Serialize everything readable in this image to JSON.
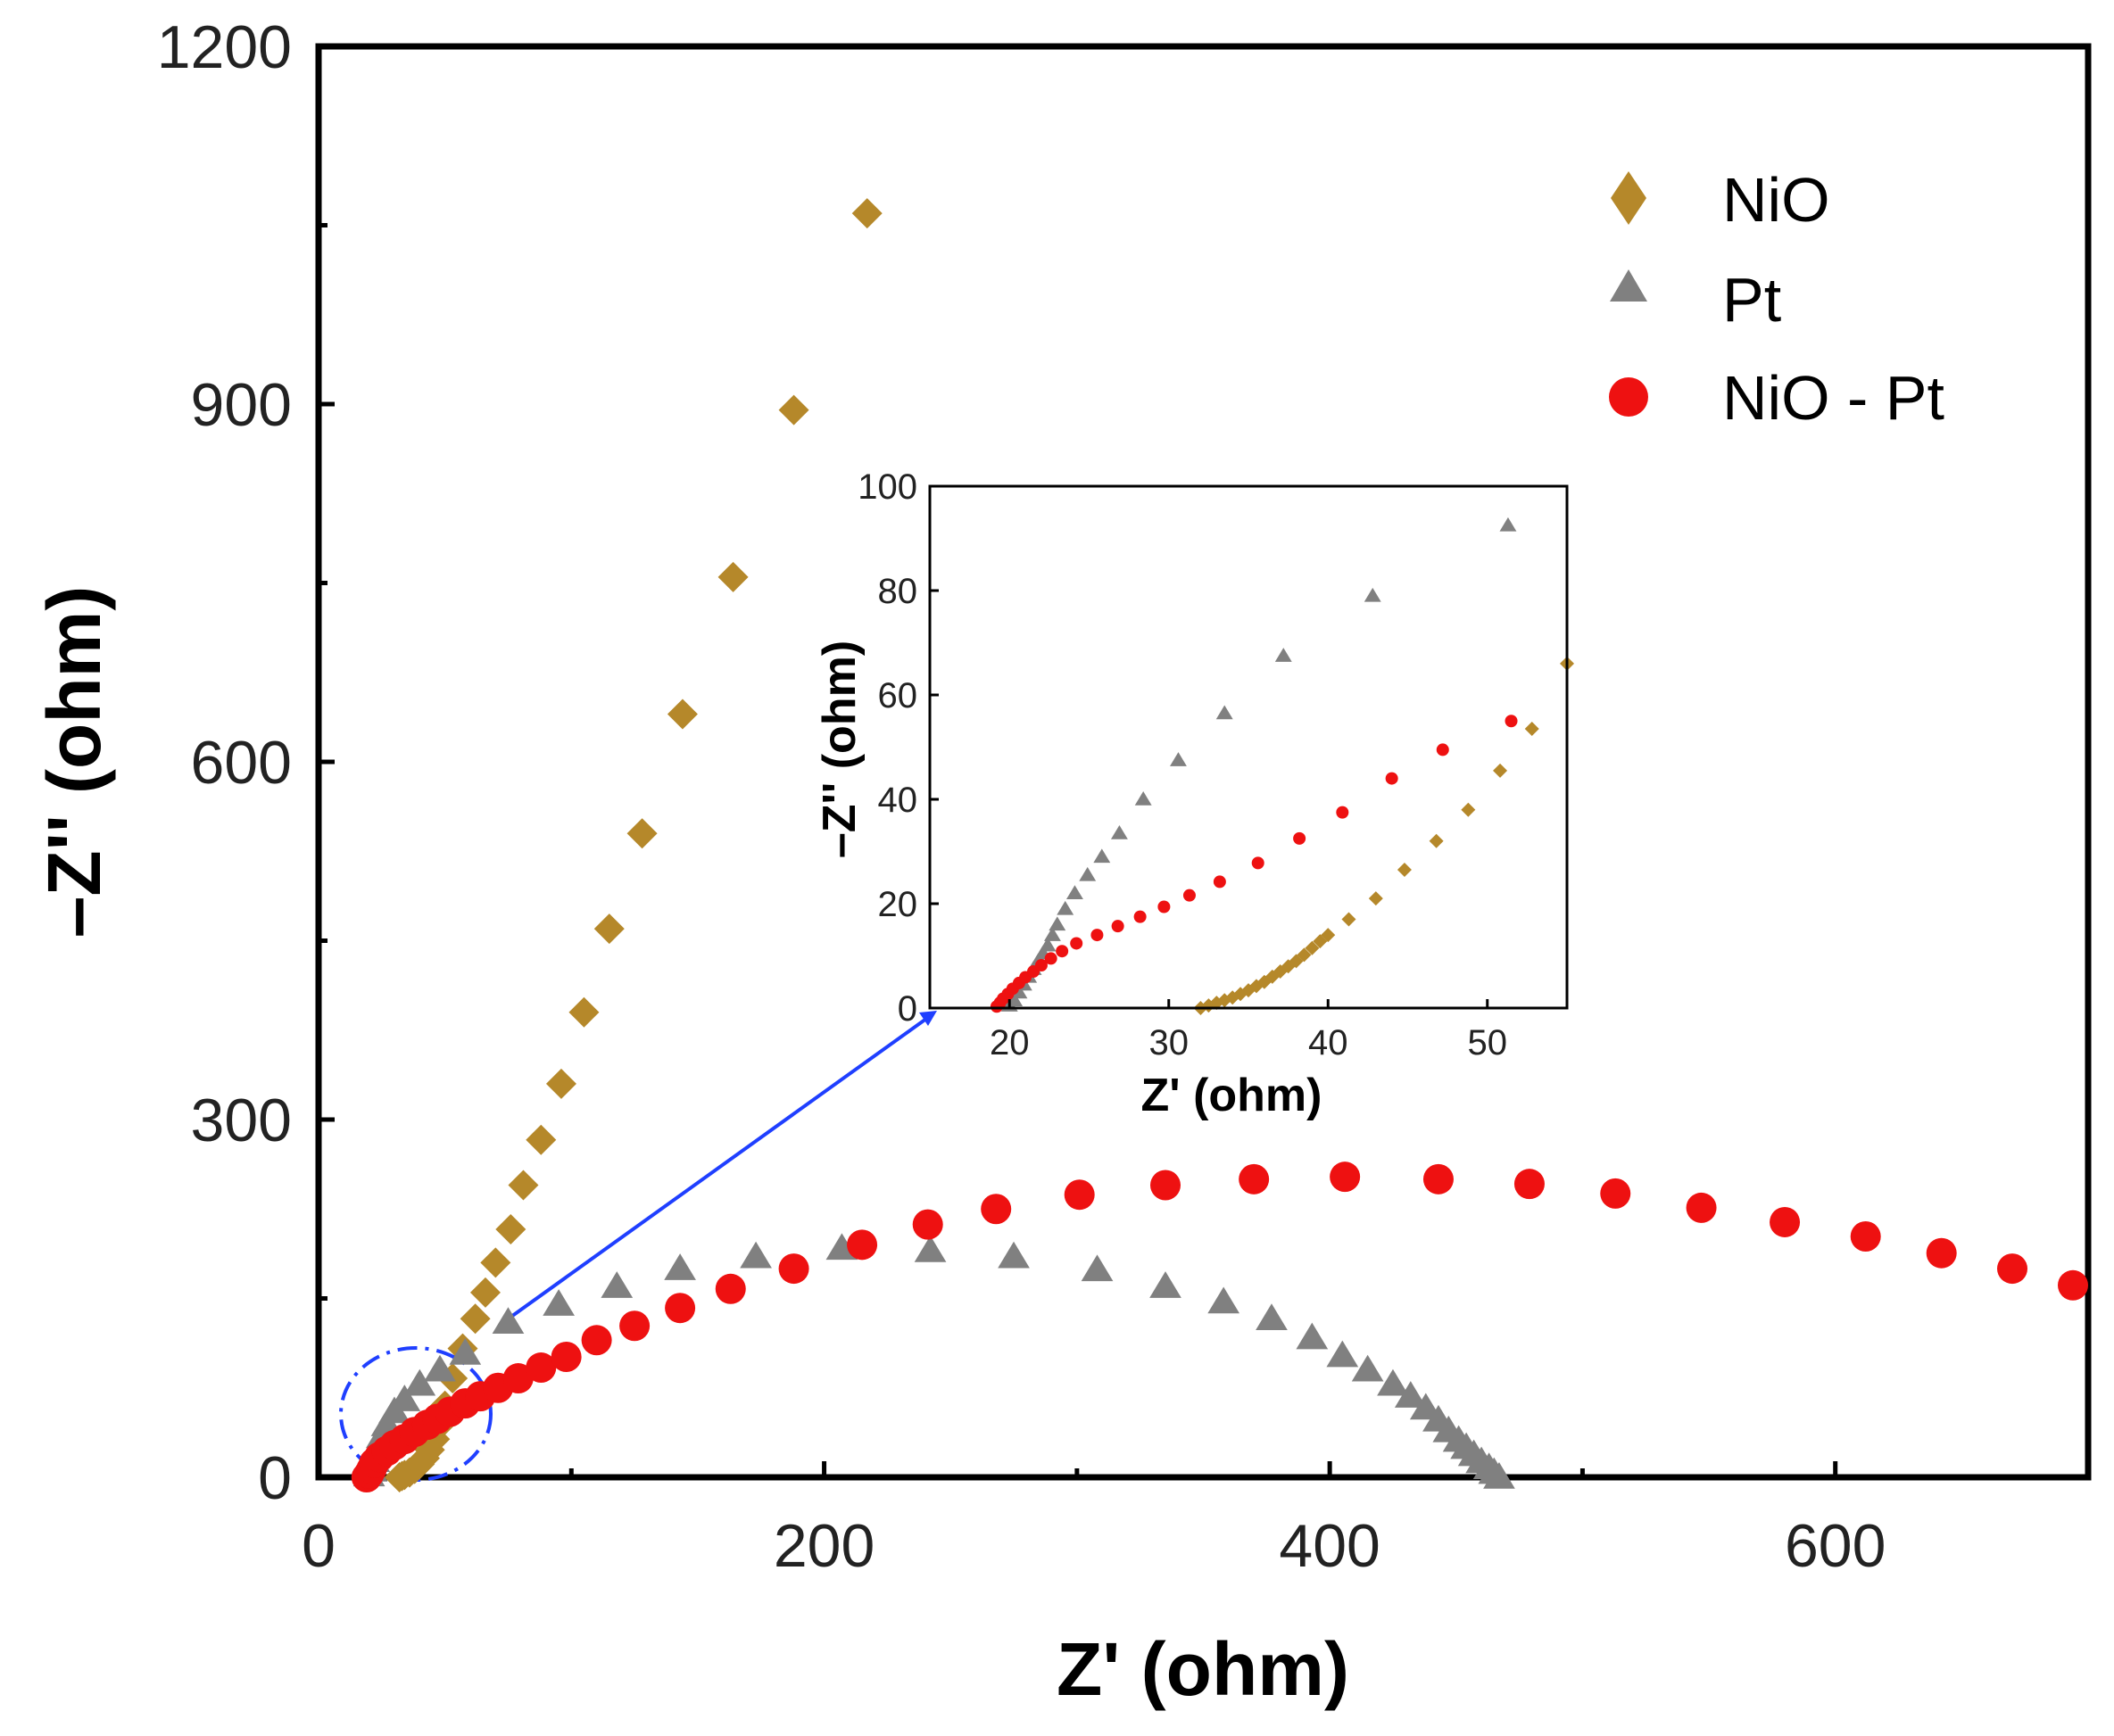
{
  "chart_data": {
    "type": "scatter",
    "title": "",
    "xlabel": "Z' (ohm)",
    "ylabel": "–Z'' (ohm)",
    "xlim": [
      0,
      700
    ],
    "ylim": [
      0,
      1200
    ],
    "xticks": [
      "0",
      "200",
      "400",
      "600"
    ],
    "yticks": [
      "0",
      "300",
      "600",
      "900",
      "1200"
    ],
    "legend_position": "top-right",
    "series": [
      {
        "name": "NiO",
        "marker": "diamond",
        "color": "#b5882a",
        "points": [
          [
            32,
            0
          ],
          [
            33,
            1
          ],
          [
            34,
            2
          ],
          [
            36,
            4
          ],
          [
            38,
            7
          ],
          [
            40,
            11
          ],
          [
            42,
            16
          ],
          [
            44,
            23
          ],
          [
            46,
            32
          ],
          [
            48,
            44
          ],
          [
            50,
            60
          ],
          [
            53,
            83
          ],
          [
            57,
            108
          ],
          [
            62,
            133
          ],
          [
            66,
            155
          ],
          [
            70,
            180
          ],
          [
            76,
            208
          ],
          [
            81,
            245
          ],
          [
            88,
            283
          ],
          [
            96,
            330
          ],
          [
            105,
            390
          ],
          [
            115,
            460
          ],
          [
            128,
            540
          ],
          [
            144,
            640
          ],
          [
            164,
            755
          ],
          [
            188,
            895
          ],
          [
            217,
            1060
          ]
        ]
      },
      {
        "name": "Pt",
        "marker": "triangle",
        "color": "#808080",
        "points": [
          [
            20,
            2
          ],
          [
            21,
            6
          ],
          [
            22,
            14
          ],
          [
            23,
            24
          ],
          [
            25,
            34
          ],
          [
            27,
            44
          ],
          [
            30,
            55
          ],
          [
            34,
            65
          ],
          [
            40,
            78
          ],
          [
            48,
            90
          ],
          [
            58,
            104
          ],
          [
            75,
            130
          ],
          [
            95,
            145
          ],
          [
            118,
            160
          ],
          [
            143,
            175
          ],
          [
            173,
            185
          ],
          [
            207,
            192
          ],
          [
            242,
            190
          ],
          [
            275,
            185
          ],
          [
            308,
            174
          ],
          [
            335,
            160
          ],
          [
            358,
            147
          ],
          [
            377,
            133
          ],
          [
            393,
            117
          ],
          [
            405,
            102
          ],
          [
            415,
            90
          ],
          [
            425,
            78
          ],
          [
            432,
            68
          ],
          [
            438,
            58
          ],
          [
            443,
            48
          ],
          [
            447,
            39
          ],
          [
            451,
            31
          ],
          [
            454,
            25
          ],
          [
            457,
            19
          ],
          [
            460,
            13
          ],
          [
            463,
            8
          ],
          [
            465,
            4
          ],
          [
            467,
            0
          ]
        ]
      },
      {
        "name": "NiO - Pt",
        "marker": "circle",
        "color": "#ee1111",
        "points": [
          [
            19,
            0
          ],
          [
            20,
            3
          ],
          [
            21,
            7
          ],
          [
            22,
            12
          ],
          [
            24,
            17
          ],
          [
            27,
            22
          ],
          [
            30,
            27
          ],
          [
            34,
            32
          ],
          [
            38,
            38
          ],
          [
            43,
            44
          ],
          [
            47,
            49
          ],
          [
            52,
            55
          ],
          [
            58,
            62
          ],
          [
            64,
            68
          ],
          [
            71,
            75
          ],
          [
            79,
            83
          ],
          [
            88,
            92
          ],
          [
            98,
            101
          ],
          [
            110,
            115
          ],
          [
            125,
            127
          ],
          [
            143,
            142
          ],
          [
            163,
            158
          ],
          [
            188,
            175
          ],
          [
            215,
            195
          ],
          [
            241,
            212
          ],
          [
            268,
            225
          ],
          [
            301,
            237
          ],
          [
            335,
            245
          ],
          [
            370,
            250
          ],
          [
            406,
            252
          ],
          [
            443,
            250
          ],
          [
            479,
            246
          ],
          [
            513,
            238
          ],
          [
            547,
            226
          ],
          [
            580,
            214
          ],
          [
            612,
            202
          ],
          [
            642,
            188
          ],
          [
            670,
            175
          ],
          [
            694,
            161
          ]
        ]
      }
    ],
    "inset": {
      "xlabel": "Z' (ohm)",
      "ylabel": "–Z'' (ohm)",
      "xlim": [
        15,
        55
      ],
      "ylim": [
        0,
        100
      ],
      "xticks": [
        "20",
        "30",
        "40",
        "50"
      ],
      "yticks": [
        "0",
        "20",
        "40",
        "60",
        "80",
        "100"
      ],
      "series": [
        {
          "name": "NiO",
          "points": [
            [
              32,
              0
            ],
            [
              32.5,
              0.5
            ],
            [
              33,
              1
            ],
            [
              33.5,
              1.5
            ],
            [
              34,
              2
            ],
            [
              34.5,
              2.7
            ],
            [
              35,
              3.4
            ],
            [
              35.5,
              4.2
            ],
            [
              36,
              5
            ],
            [
              36.5,
              6
            ],
            [
              37,
              7
            ],
            [
              37.5,
              8
            ],
            [
              38,
              9
            ],
            [
              38.5,
              10.2
            ],
            [
              39,
              11.5
            ],
            [
              39.5,
              12.8
            ],
            [
              40,
              14
            ],
            [
              41.3,
              17
            ],
            [
              43,
              21
            ],
            [
              44.8,
              26.5
            ],
            [
              46.8,
              32
            ],
            [
              48.8,
              38
            ],
            [
              50.8,
              45.5
            ],
            [
              52.8,
              53.5
            ],
            [
              55,
              66
            ]
          ]
        },
        {
          "name": "Pt",
          "points": [
            [
              20,
              0.5
            ],
            [
              20.3,
              1.5
            ],
            [
              20.6,
              3
            ],
            [
              20.9,
              4.5
            ],
            [
              21.2,
              6
            ],
            [
              21.5,
              7.5
            ],
            [
              21.8,
              9
            ],
            [
              22.1,
              10.5
            ],
            [
              22.4,
              12
            ],
            [
              22.7,
              14
            ],
            [
              23,
              16
            ],
            [
              23.5,
              19
            ],
            [
              24.1,
              22
            ],
            [
              24.9,
              25.5
            ],
            [
              25.8,
              29
            ],
            [
              26.9,
              33.5
            ],
            [
              28.4,
              40
            ],
            [
              30.6,
              47.5
            ],
            [
              33.5,
              56.5
            ],
            [
              37.2,
              67.5
            ],
            [
              42.8,
              79
            ],
            [
              51.3,
              92.5
            ]
          ]
        },
        {
          "name": "NiO - Pt",
          "points": [
            [
              19.2,
              0.3
            ],
            [
              19.4,
              1
            ],
            [
              19.6,
              1.8
            ],
            [
              19.9,
              2.7
            ],
            [
              20.2,
              3.7
            ],
            [
              20.6,
              4.8
            ],
            [
              21,
              5.9
            ],
            [
              21.5,
              7
            ],
            [
              22,
              8.2
            ],
            [
              22.6,
              9.5
            ],
            [
              23.3,
              10.9
            ],
            [
              24.2,
              12.4
            ],
            [
              25.5,
              14
            ],
            [
              26.8,
              15.7
            ],
            [
              28.2,
              17.5
            ],
            [
              29.7,
              19.4
            ],
            [
              31.3,
              21.6
            ],
            [
              33.2,
              24.2
            ],
            [
              35.6,
              27.8
            ],
            [
              38.2,
              32.5
            ],
            [
              40.9,
              37.5
            ],
            [
              44,
              44
            ],
            [
              47.2,
              49.5
            ],
            [
              51.5,
              55
            ]
          ]
        }
      ]
    }
  }
}
